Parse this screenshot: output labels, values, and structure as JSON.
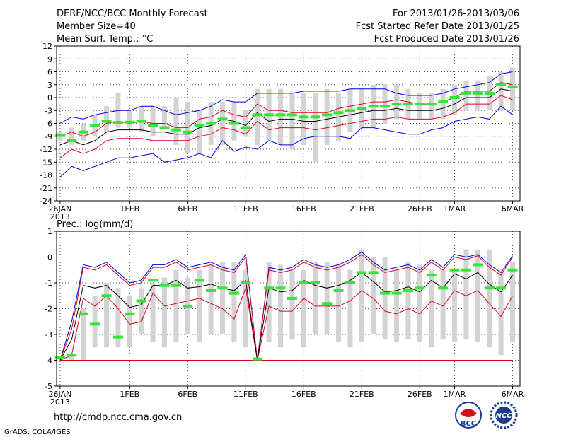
{
  "header": {
    "title": "DERF/NCC/BCC Monthly Forecast",
    "member": "Member Size=40",
    "variable": "Mean Surf. Temp.: °C",
    "for_range": "For 2013/01/26-2013/03/06",
    "started": "Fcst Started Refer Date 2013/01/25",
    "produced": "Fcst Produced Date 2013/01/26"
  },
  "footer": {
    "url": "http://cmdp.ncc.cma.gov.cn",
    "grads": "GrADS: COLA/IGES",
    "logo_bcc": "BCC",
    "logo_ncc": "NCC"
  },
  "colors": {
    "box": "#d3d3d3",
    "median": "#33e633",
    "mean": "#000000",
    "spread": "#e0001c",
    "envelope": "#0000e6",
    "grid": "#555555"
  },
  "chart_data": [
    {
      "type": "box-line",
      "title": "Mean Surf. Temp.: °C",
      "ylim": [
        -24,
        12
      ],
      "yticks": [
        -24,
        -21,
        -18,
        -15,
        -12,
        -9,
        -6,
        -3,
        0,
        3,
        6,
        9,
        12
      ],
      "x_tick_labels": [
        {
          "day": 1,
          "label": "26JAN",
          "sub": "2013"
        },
        {
          "day": 7,
          "label": "1FEB"
        },
        {
          "day": 12,
          "label": "6FEB"
        },
        {
          "day": 17,
          "label": "11FEB"
        },
        {
          "day": 22,
          "label": "16FEB"
        },
        {
          "day": 27,
          "label": "21FEB"
        },
        {
          "day": 32,
          "label": "26FEB"
        },
        {
          "day": 35,
          "label": "1MAR"
        },
        {
          "day": 40,
          "label": "6MAR"
        }
      ],
      "days": 40,
      "box_low": [
        -10,
        -11,
        -10,
        -9,
        -8,
        -7,
        -7,
        -8,
        -9,
        -7,
        -11,
        -13,
        -13,
        -11,
        -11,
        -10,
        -9,
        -11,
        -10,
        -11,
        -12,
        -11,
        -15,
        -11,
        -10,
        -8,
        -7,
        -7,
        -6,
        -5,
        -5,
        -5,
        -5,
        -5,
        -4,
        -3,
        -3,
        -3,
        -3,
        -3
      ],
      "box_high": [
        -8,
        -7,
        -6,
        -4,
        -2,
        1,
        -3,
        -2,
        -2,
        -2,
        0,
        -1,
        -3,
        -1,
        -1,
        -1,
        -3,
        2,
        2,
        2,
        1,
        1,
        1,
        2,
        1,
        2,
        2,
        3,
        3,
        3,
        2,
        1,
        1,
        2,
        3,
        4,
        4,
        5,
        6,
        7
      ],
      "median": [
        -8.8,
        -10,
        -8,
        -6.5,
        -5.5,
        -5.8,
        -5.7,
        -5.5,
        -6.5,
        -7,
        -7.5,
        -8,
        -6.5,
        -6,
        -5,
        -6,
        -7,
        -4,
        -4,
        -4,
        -4,
        -4.5,
        -4.5,
        -4,
        -3.5,
        -3,
        -2.5,
        -2,
        -2,
        -1.5,
        -1.5,
        -1.5,
        -1.5,
        -1,
        0,
        1,
        1,
        1,
        3,
        2.5
      ],
      "mean": [
        -11,
        -10,
        -11,
        -10,
        -8,
        -7.5,
        -7.5,
        -7.5,
        -8,
        -8,
        -8.5,
        -8.5,
        -7,
        -6.5,
        -5,
        -5.5,
        -6.5,
        -3.5,
        -5.5,
        -5,
        -5,
        -5.5,
        -5.5,
        -5,
        -4.5,
        -4,
        -3.5,
        -3,
        -3,
        -2.5,
        -3,
        -3,
        -3,
        -2.5,
        -1.5,
        0,
        0,
        0,
        2,
        1.5
      ],
      "upper": [
        -9,
        -8,
        -9,
        -8,
        -6,
        -5.5,
        -6,
        -5.5,
        -6,
        -6,
        -7,
        -7,
        -5,
        -4.5,
        -3,
        -4,
        -4.5,
        -1.5,
        -3,
        -3,
        -3.5,
        -3.5,
        -3.5,
        -3.5,
        -2.5,
        -2,
        -1.5,
        -1,
        -1,
        -0.5,
        -1,
        -1.5,
        -1.5,
        -1,
        0,
        1.5,
        1.5,
        1.5,
        3.5,
        3
      ],
      "lower": [
        -14,
        -12,
        -13,
        -12,
        -10,
        -9.5,
        -9.5,
        -9.5,
        -10,
        -10,
        -10,
        -10,
        -9,
        -8.5,
        -7,
        -7.5,
        -8.5,
        -5.5,
        -7.5,
        -7,
        -7,
        -7,
        -7.5,
        -7,
        -6.5,
        -6,
        -5.5,
        -5,
        -5,
        -4.5,
        -5,
        -5,
        -5,
        -4.5,
        -3.5,
        -1.5,
        -1.5,
        -1.5,
        0.5,
        -0.5
      ],
      "env_max": [
        -6,
        -4.5,
        -5,
        -4,
        -3.5,
        -3,
        -3,
        -2,
        -2,
        -3,
        -4,
        -3.5,
        -3,
        -2,
        -0.5,
        -1,
        -1,
        1,
        1,
        1,
        1,
        1.5,
        1.5,
        1.5,
        1.5,
        2,
        2,
        2,
        2,
        1,
        0.5,
        0.5,
        0.5,
        1,
        2,
        2.5,
        3,
        3.5,
        5.5,
        6
      ],
      "env_min": [
        -18.5,
        -16,
        -17,
        -16,
        -15,
        -14,
        -14,
        -13.5,
        -13,
        -15,
        -14.5,
        -14,
        -13,
        -14,
        -10,
        -12.5,
        -11.5,
        -12,
        -10,
        -11,
        -11,
        -9.5,
        -9,
        -9,
        -9,
        -9.5,
        -7,
        -7,
        -7.5,
        -8,
        -8.5,
        -8.5,
        -7.5,
        -7,
        -5.5,
        -5,
        -4.5,
        -5,
        -2,
        -4
      ]
    },
    {
      "type": "box-line",
      "title": "Prec.: log(mm/d)",
      "ylim": [
        -5,
        1
      ],
      "yticks": [
        -5,
        -4,
        -3,
        -2,
        -1,
        0,
        1
      ],
      "x_tick_labels": [
        {
          "day": 1,
          "label": "26JAN",
          "sub": "2013"
        },
        {
          "day": 7,
          "label": "1FEB"
        },
        {
          "day": 12,
          "label": "6FEB"
        },
        {
          "day": 17,
          "label": "11FEB"
        },
        {
          "day": 22,
          "label": "16FEB"
        },
        {
          "day": 27,
          "label": "21FEB"
        },
        {
          "day": 32,
          "label": "26FEB"
        },
        {
          "day": 35,
          "label": "1MAR"
        },
        {
          "day": 40,
          "label": "6MAR"
        }
      ],
      "days": 40,
      "box_low": [
        -4,
        -4,
        -4,
        -3.5,
        -3.5,
        -3.5,
        -3.5,
        -3,
        -3.3,
        -3.5,
        -3.3,
        -3,
        -3.3,
        -3,
        -3,
        -3.3,
        -3.5,
        -4,
        -3.3,
        -3.5,
        -3.2,
        -3.5,
        -3,
        -3,
        -3.3,
        -3.5,
        -3.3,
        -3,
        -3.2,
        -3.3,
        -3.2,
        -3.3,
        -3.5,
        -3.2,
        -3.3,
        -3.2,
        -3.3,
        -3.5,
        -3.8,
        -3.3
      ],
      "box_high": [
        -4,
        -3.8,
        -2,
        -1.5,
        -1,
        -1.2,
        -1.5,
        -1.2,
        -1,
        -0.8,
        -0.5,
        -0.8,
        -0.5,
        -0.3,
        -0.2,
        -0.2,
        -0.5,
        -4,
        -0.2,
        -0.3,
        -0.5,
        -0.5,
        -0.2,
        -0.2,
        -0.3,
        -0.5,
        0.3,
        0,
        0,
        -0.5,
        -0.2,
        -0.3,
        -0.5,
        -0.5,
        -0.5,
        0.3,
        0.3,
        0.3,
        -0.5,
        -0.2
      ],
      "median": [
        -3.9,
        -3.8,
        -2.2,
        -2.6,
        -1.5,
        -3.1,
        -2.2,
        -1.7,
        -0.9,
        -1.1,
        -1.1,
        -1.9,
        -0.9,
        -1.3,
        -1.2,
        -1.4,
        -1,
        -3.95,
        -1.2,
        -1.2,
        -1.6,
        -1,
        -1,
        -1.8,
        -1.3,
        -1,
        -0.6,
        -0.6,
        -1.4,
        -1.4,
        -1.3,
        -1.2,
        -0.7,
        -1.2,
        -0.5,
        -0.5,
        -0.3,
        -1.2,
        -1.2,
        -0.5
      ],
      "mean": [
        -4,
        -3.2,
        -1.1,
        -1.2,
        -1.1,
        -1.5,
        -1.95,
        -1.85,
        -1.1,
        -1.1,
        -0.9,
        -1.2,
        -1.15,
        -1.05,
        -1.2,
        -1.3,
        -0.9,
        -4,
        -1.2,
        -1.35,
        -1.3,
        -0.9,
        -1.1,
        -1.2,
        -1.1,
        -0.9,
        -0.6,
        -0.95,
        -1.35,
        -1.3,
        -1.15,
        -1.35,
        -0.9,
        -1.2,
        -0.65,
        -0.85,
        -0.6,
        -1.05,
        -1.35,
        -0.7
      ],
      "upper": [
        -4,
        -2.8,
        -0.4,
        -0.5,
        -0.3,
        -0.7,
        -1.1,
        -1,
        -0.4,
        -0.4,
        -0.2,
        -0.5,
        -0.4,
        -0.3,
        -0.5,
        -0.6,
        0,
        -4,
        -0.5,
        -0.6,
        -0.5,
        -0.2,
        -0.4,
        -0.5,
        -0.4,
        -0.2,
        0.1,
        -0.3,
        -0.6,
        -0.5,
        -0.4,
        -0.6,
        -0.2,
        -0.5,
        0,
        -0.1,
        0.05,
        -0.4,
        -0.7,
        0
      ],
      "lower": [
        -4,
        -3.8,
        -1.6,
        -1.9,
        -1.5,
        -2,
        -2.6,
        -2.5,
        -1.4,
        -1.9,
        -1.8,
        -1.7,
        -1.6,
        -1.8,
        -2,
        -2.4,
        -1.2,
        -4,
        -1.9,
        -2.1,
        -2.1,
        -1.6,
        -1.9,
        -1.9,
        -1.9,
        -1.7,
        -1.3,
        -1.6,
        -2.1,
        -2.2,
        -2,
        -2.2,
        -1.7,
        -1.9,
        -1.3,
        -1.5,
        -1.3,
        -1.8,
        -2.3,
        -1.5
      ],
      "env_max": [
        -4,
        -2.5,
        -0.3,
        -0.4,
        -0.2,
        -0.6,
        -1,
        -0.9,
        -0.3,
        -0.3,
        -0.1,
        -0.4,
        -0.3,
        -0.2,
        -0.4,
        -0.5,
        0.1,
        -4,
        -0.4,
        -0.5,
        -0.4,
        -0.1,
        -0.3,
        -0.4,
        -0.3,
        -0.1,
        0.2,
        -0.2,
        -0.5,
        -0.4,
        -0.3,
        -0.5,
        -0.1,
        -0.4,
        0.1,
        0,
        0.1,
        -0.3,
        -0.6,
        0.05
      ],
      "dry_line": -4,
      "dry_line_label": "-4"
    }
  ],
  "plot_labels": {
    "temp_title": "Mean Surf. Temp.: °C",
    "prec_title": "Prec.: log(mm/d)"
  }
}
